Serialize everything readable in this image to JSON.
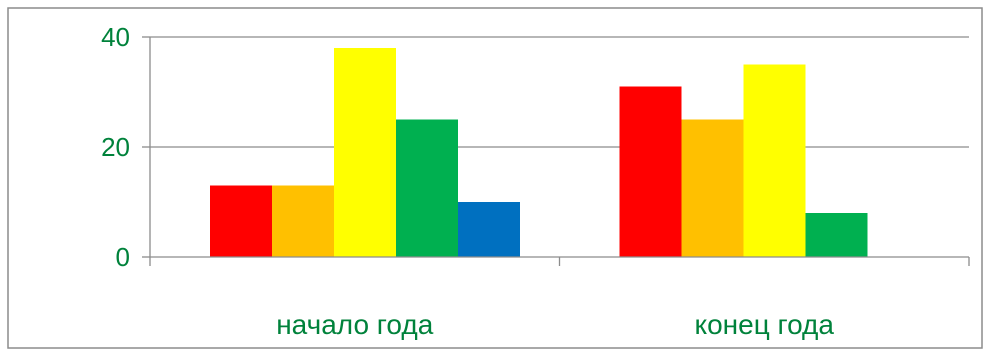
{
  "chart_data": {
    "type": "bar",
    "categories": [
      "начало года",
      "конец года"
    ],
    "series": [
      {
        "values": [
          13,
          31
        ],
        "color": "#ff0000"
      },
      {
        "values": [
          13,
          25
        ],
        "color": "#ffc000"
      },
      {
        "values": [
          38,
          35
        ],
        "color": "#ffff00"
      },
      {
        "values": [
          25,
          8
        ],
        "color": "#00b050"
      },
      {
        "values": [
          10,
          null
        ],
        "color": "#0070c0"
      }
    ],
    "yticks": [
      0,
      20,
      40
    ],
    "ylim": [
      0,
      40
    ],
    "grid": true,
    "legend": "none",
    "label_color": "#00823b"
  }
}
